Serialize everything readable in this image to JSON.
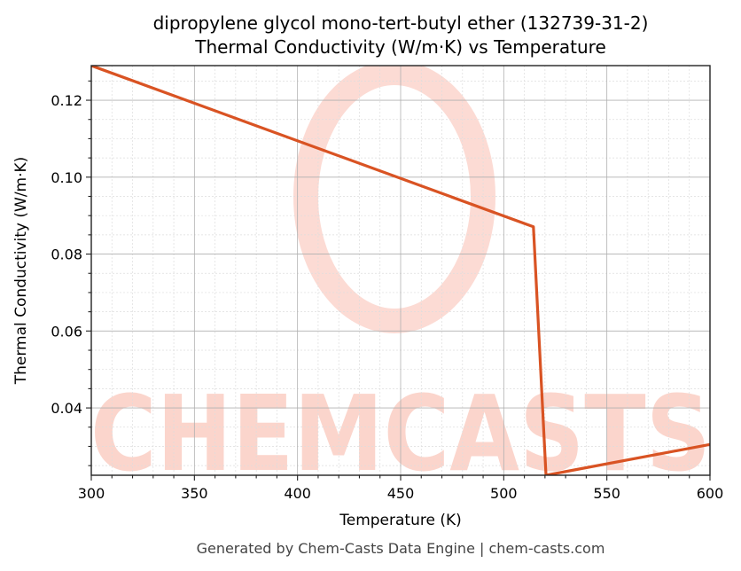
{
  "title_line1": "dipropylene glycol mono-tert-butyl ether (132739-31-2)",
  "title_line2": "Thermal Conductivity (W/m·K) vs Temperature",
  "xlabel": "Temperature (K)",
  "ylabel": "Thermal Conductivity (W/m·K)",
  "footer": "Generated by Chem-Casts Data Engine | chem-casts.com",
  "watermark": "CHEMCASTS",
  "colors": {
    "line": "#d95323",
    "watermark": "#fbd5cc",
    "grid_major": "#b0b0b0",
    "grid_minor": "#dddddd"
  },
  "chart_data": {
    "type": "line",
    "title": "dipropylene glycol mono-tert-butyl ether (132739-31-2) Thermal Conductivity (W/m·K) vs Temperature",
    "xlabel": "Temperature (K)",
    "ylabel": "Thermal Conductivity (W/m·K)",
    "xlim": [
      300,
      600
    ],
    "ylim": [
      0.0225,
      0.129
    ],
    "xticks": [
      300,
      350,
      400,
      450,
      500,
      550,
      600
    ],
    "xtick_labels": [
      "300",
      "350",
      "400",
      "450",
      "500",
      "550",
      "600"
    ],
    "yticks": [
      0.04,
      0.06,
      0.08,
      0.1,
      0.12
    ],
    "ytick_labels": [
      "0.04",
      "0.06",
      "0.08",
      "0.10",
      "0.12"
    ],
    "grid": true,
    "legend": null,
    "series": [
      {
        "name": "Thermal Conductivity",
        "x": [
          300,
          514.4,
          520.5,
          600
        ],
        "y": [
          0.129,
          0.0871,
          0.0225,
          0.0305
        ]
      }
    ]
  }
}
